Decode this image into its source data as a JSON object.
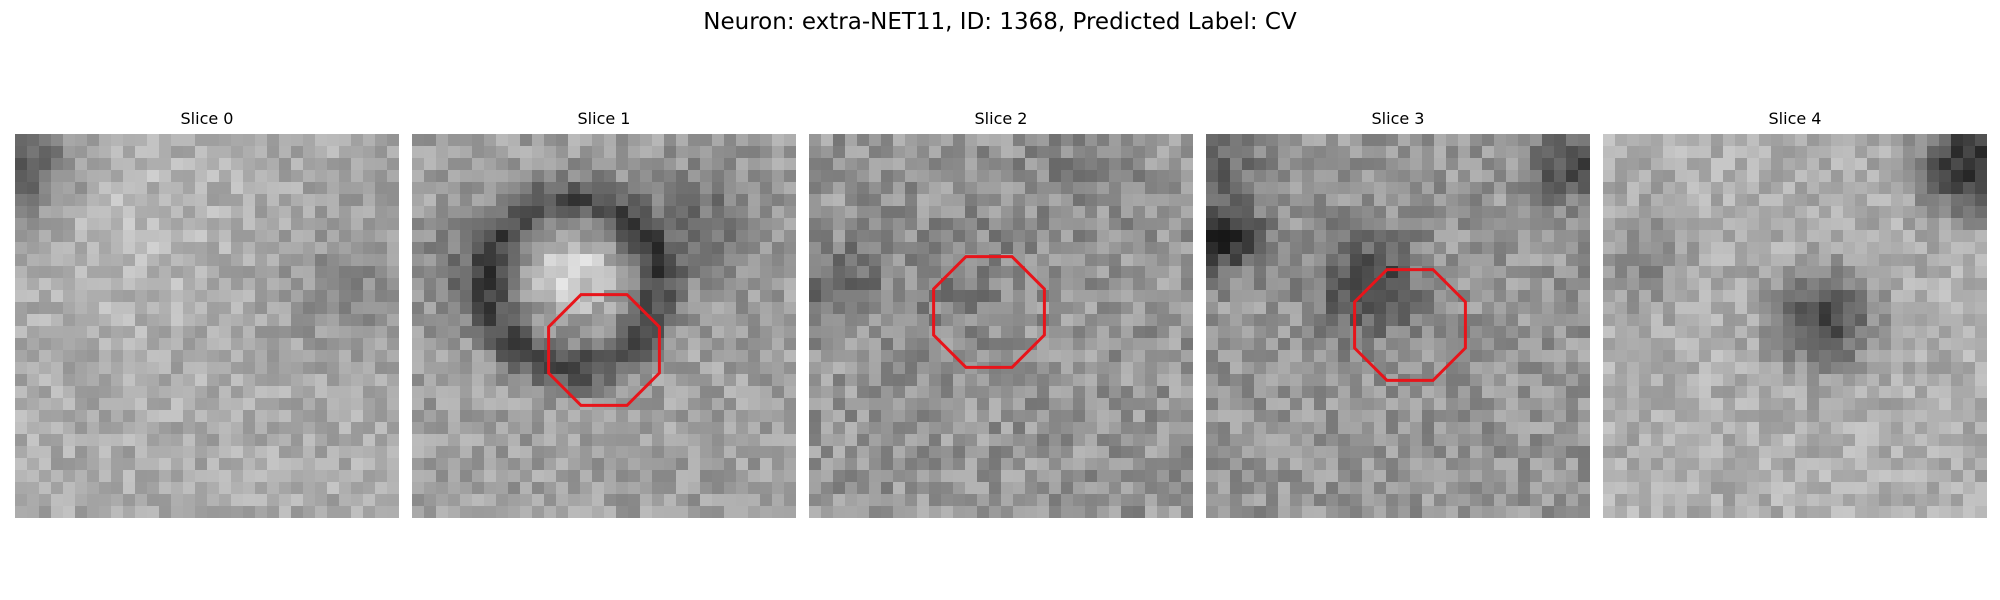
{
  "figure": {
    "title": "Neuron: extra-NET11, ID: 1368, Predicted Label: CV"
  },
  "panels": [
    {
      "title": "Slice 0",
      "has_marker": false,
      "marker_color": "#e8141a"
    },
    {
      "title": "Slice 1",
      "has_marker": true,
      "marker_color": "#e8141a"
    },
    {
      "title": "Slice 2",
      "has_marker": true,
      "marker_color": "#e8141a"
    },
    {
      "title": "Slice 3",
      "has_marker": true,
      "marker_color": "#e8141a"
    },
    {
      "title": "Slice 4",
      "has_marker": false,
      "marker_color": "#e8141a"
    }
  ],
  "image": {
    "colormap": "grayscale",
    "marker_shape": "octagon"
  }
}
